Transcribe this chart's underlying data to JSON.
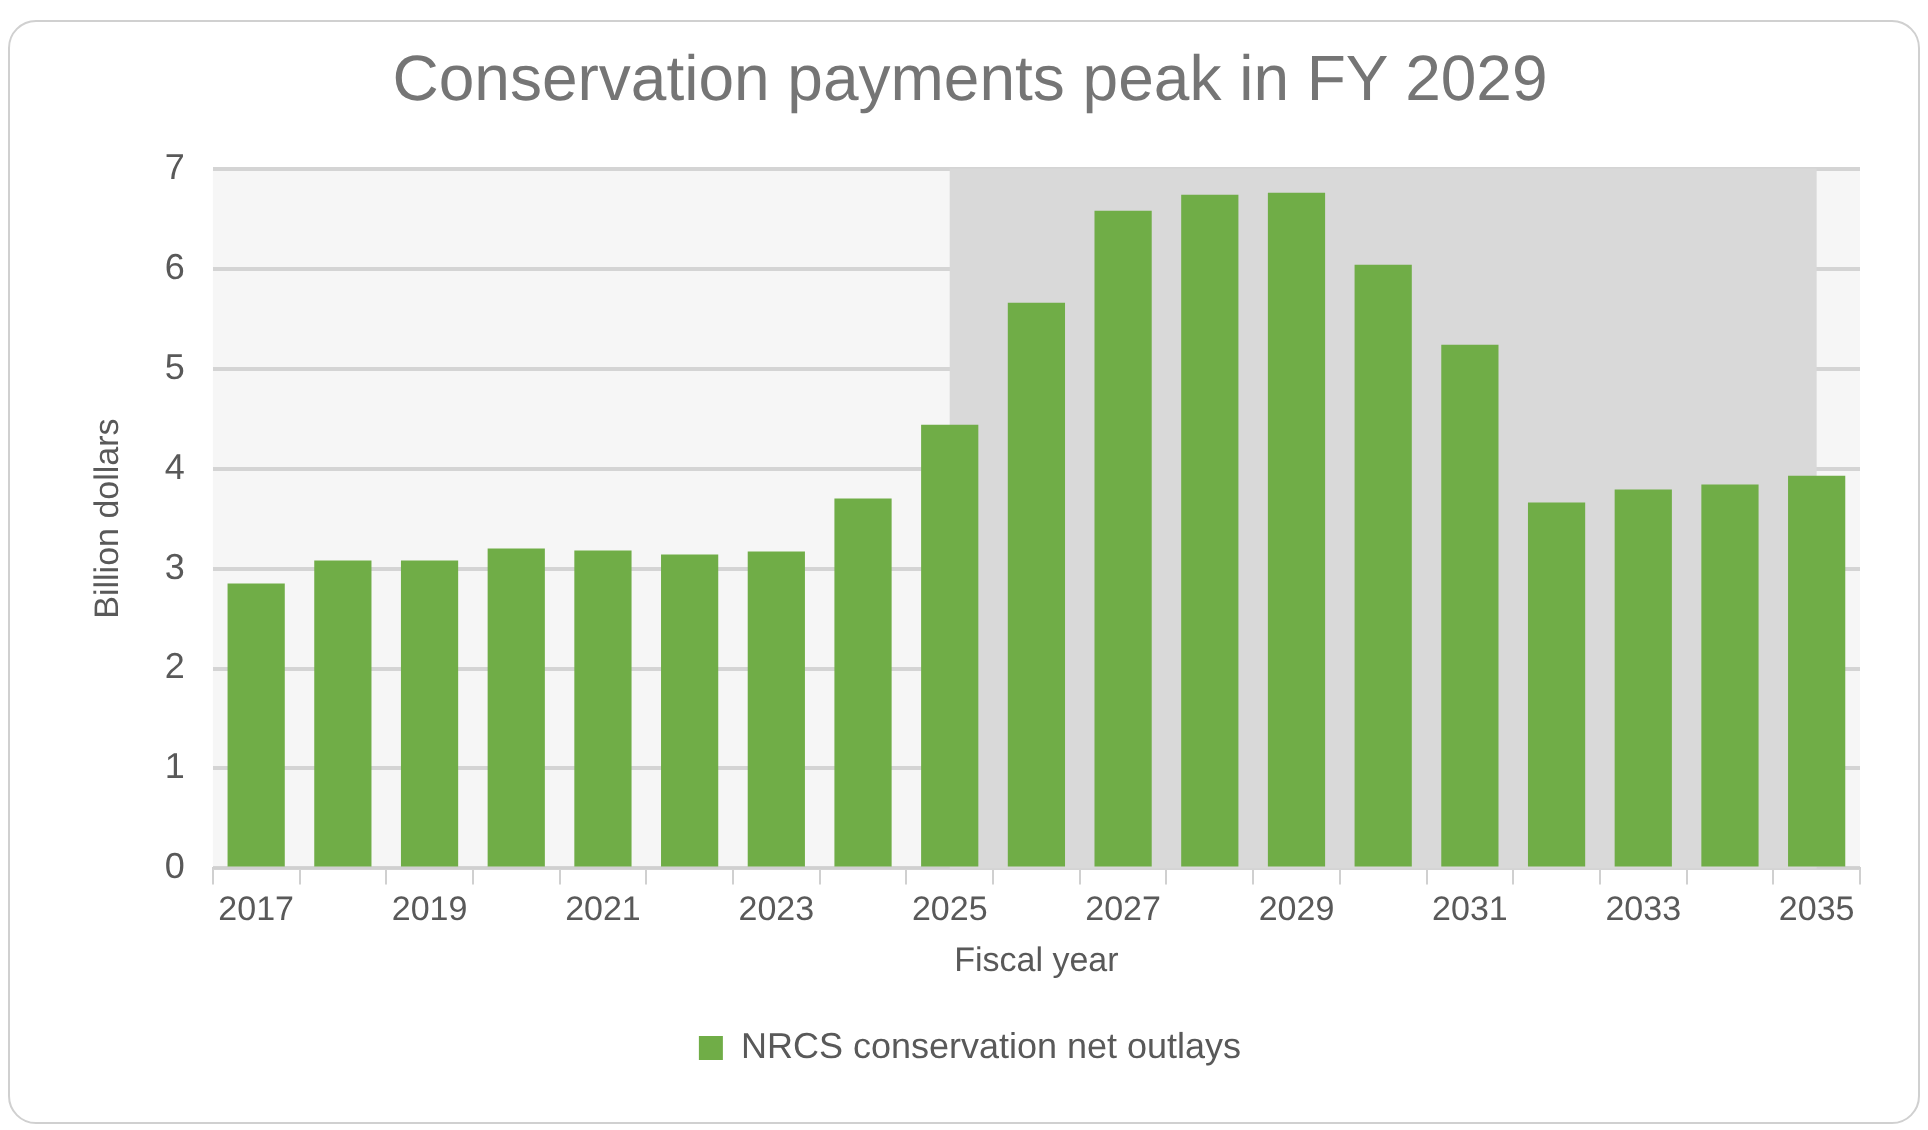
{
  "chart_data": {
    "type": "bar",
    "title": "Conservation payments peak in FY 2029",
    "xlabel": "Fiscal year",
    "ylabel": "Billion dollars",
    "categories": [
      "2017",
      null,
      "2019",
      null,
      "2021",
      null,
      "2023",
      null,
      "2025",
      null,
      "2027",
      null,
      "2029",
      null,
      "2031",
      null,
      "2033",
      null,
      "2035"
    ],
    "series": [
      {
        "name": "NRCS conservation net outlays",
        "color": "#70ad47",
        "values": [
          2.85,
          3.08,
          3.08,
          3.2,
          3.18,
          3.14,
          3.17,
          3.7,
          4.44,
          5.66,
          6.58,
          6.74,
          6.76,
          6.04,
          5.24,
          3.66,
          3.79,
          3.84,
          3.93
        ]
      }
    ],
    "ylim": [
      0,
      7
    ],
    "yticks": [
      0,
      1,
      2,
      3,
      4,
      5,
      6,
      7
    ],
    "grid": "y",
    "legend": "bottom",
    "bands": [
      {
        "axis": "x",
        "from": "2025",
        "to": "2035",
        "color": "#d9d9d9"
      }
    ]
  }
}
